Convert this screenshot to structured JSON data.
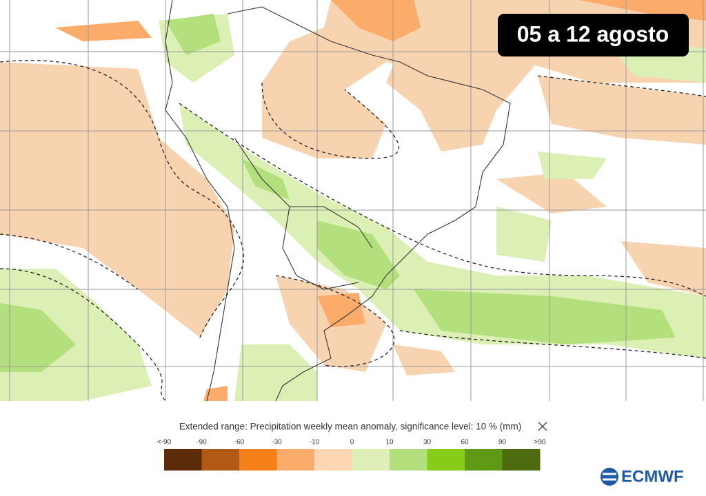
{
  "badge": "05 a 12 agosto",
  "legend": {
    "title": "Extended range: Precipitation weekly mean anomaly, significance level: 10 % (mm)",
    "labels": [
      "<-90",
      "-90",
      "-60",
      "-30",
      "-10",
      "0",
      "10",
      "30",
      "60",
      "90",
      ">90"
    ],
    "colors": [
      "#5c2c0a",
      "#b25a14",
      "#f5801a",
      "#fbac6a",
      "#fdd6b4",
      "#def0b8",
      "#b3e07c",
      "#86cc18",
      "#5e9a14",
      "#4e6b10"
    ]
  },
  "logo": "ECMWF"
}
